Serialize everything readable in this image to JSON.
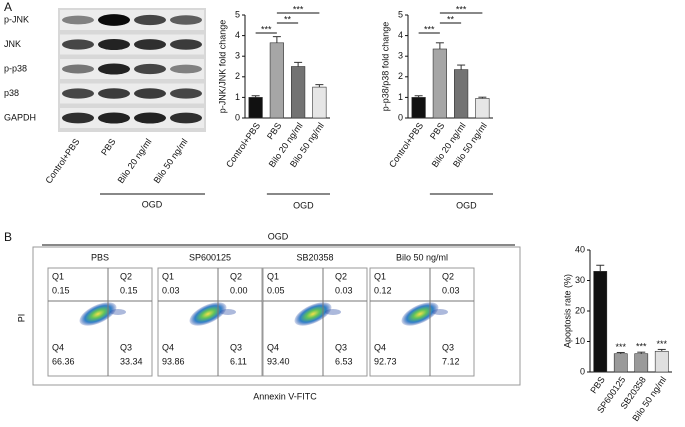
{
  "panel_a": {
    "label": "A",
    "blot_rows": [
      "p-JNK",
      "JNK",
      "p-p38",
      "p38",
      "GAPDH"
    ],
    "lanes": [
      "Control+PBS",
      "PBS",
      "Bilo 20 ng/ml",
      "Bilo 50 ng/ml"
    ],
    "group": "OGD"
  },
  "chart_data": [
    {
      "type": "bar",
      "y_label": "p-JNK/JNK fold change",
      "categories": [
        "Control+PBS",
        "PBS",
        "Bilo 20 ng/ml",
        "Bilo 50 ng/ml"
      ],
      "group": "OGD",
      "values": [
        1.0,
        3.65,
        2.5,
        1.5
      ],
      "errors": [
        0.08,
        0.3,
        0.2,
        0.12
      ],
      "colors": [
        "#111111",
        "#a6a6a6",
        "#737373",
        "#e6e6e6"
      ],
      "ylim": [
        0,
        5
      ],
      "yticks": [
        0,
        1,
        2,
        3,
        4,
        5
      ],
      "annotations": [
        "***",
        "**",
        "***"
      ]
    },
    {
      "type": "bar",
      "y_label": "p-p38/p38 fold change",
      "categories": [
        "Control+PBS",
        "PBS",
        "Bilo 20 ng/ml",
        "Bilo 50 ng/ml"
      ],
      "group": "OGD",
      "values": [
        1.0,
        3.35,
        2.35,
        0.95
      ],
      "errors": [
        0.08,
        0.3,
        0.22,
        0.06
      ],
      "colors": [
        "#111111",
        "#a6a6a6",
        "#737373",
        "#e6e6e6"
      ],
      "ylim": [
        0,
        5
      ],
      "yticks": [
        0,
        1,
        2,
        3,
        4,
        5
      ],
      "annotations": [
        "***",
        "**",
        "***"
      ]
    },
    {
      "type": "bar",
      "y_label": "Apoptosis rate (%)",
      "categories": [
        "PBS",
        "SP600125",
        "SB20358",
        "Bilo 50 ng/ml"
      ],
      "values": [
        33,
        6,
        6,
        6.8
      ],
      "errors": [
        2,
        0.4,
        0.5,
        0.6
      ],
      "colors": [
        "#111111",
        "#9a9a9a",
        "#9a9a9a",
        "#e0e0e0"
      ],
      "ylim": [
        0,
        40
      ],
      "yticks": [
        0,
        10,
        20,
        30,
        40
      ],
      "annotations": [
        "***",
        "***",
        "***"
      ]
    }
  ],
  "panel_b": {
    "label": "B",
    "group": "OGD",
    "y_label": "PI",
    "x_label": "Annexin V-FITC",
    "plots": [
      {
        "title": "PBS",
        "quadrants": [
          {
            "name": "Q1",
            "value": "0.15"
          },
          {
            "name": "Q2",
            "value": "0.15"
          },
          {
            "name": "Q4",
            "value": "66.36"
          },
          {
            "name": "Q3",
            "value": "33.34"
          }
        ]
      },
      {
        "title": "SP600125",
        "quadrants": [
          {
            "name": "Q1",
            "value": "0.03"
          },
          {
            "name": "Q2",
            "value": "0.00"
          },
          {
            "name": "Q4",
            "value": "93.86"
          },
          {
            "name": "Q3",
            "value": "6.11"
          }
        ]
      },
      {
        "title": "SB20358",
        "quadrants": [
          {
            "name": "Q1",
            "value": "0.05"
          },
          {
            "name": "Q2",
            "value": "0.03"
          },
          {
            "name": "Q4",
            "value": "93.40"
          },
          {
            "name": "Q3",
            "value": "6.53"
          }
        ]
      },
      {
        "title": "Bilo 50 ng/ml",
        "quadrants": [
          {
            "name": "Q1",
            "value": "0.12"
          },
          {
            "name": "Q2",
            "value": "0.03"
          },
          {
            "name": "Q4",
            "value": "92.73"
          },
          {
            "name": "Q3",
            "value": "7.12"
          }
        ]
      }
    ]
  }
}
